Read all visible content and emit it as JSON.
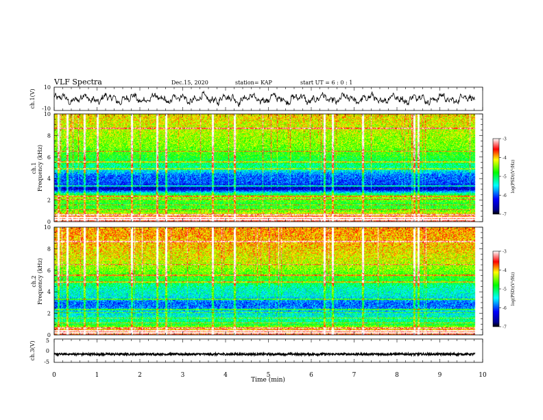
{
  "header": {
    "title": "VLF Spectra",
    "date": "Dec.15, 2020",
    "station": "station= KAP",
    "start": "start  UT =  6 : 0 : 1"
  },
  "chart_data": [
    {
      "id": "ch1_waveform",
      "type": "line",
      "ylabel": "ch.1(V)",
      "ylim": [
        -10,
        10
      ],
      "xlim": [
        0,
        10
      ],
      "yticklabels": [
        "10",
        "-10"
      ]
    },
    {
      "id": "ch1_spectrogram",
      "type": "heatmap",
      "ylabel_lines": [
        "ch.1",
        "Frequency (kHz)"
      ],
      "ylim": [
        0,
        10
      ],
      "yticks": [
        0,
        2,
        4,
        6,
        8,
        10
      ],
      "xlim": [
        0,
        10
      ],
      "colorbar": {
        "label": "log(PSD)(V²/Hz)",
        "range": [
          -7,
          -3
        ],
        "ticks": [
          "-3",
          "-4",
          "-5",
          "-6",
          "-7"
        ]
      },
      "band_levels_kHz": [
        {
          "f": 0.3,
          "level": -3.5
        },
        {
          "f": 1.0,
          "level": -4.6
        },
        {
          "f": 1.6,
          "level": -4.9
        },
        {
          "f": 2.2,
          "level": -4.4
        },
        {
          "f": 2.6,
          "level": -5.2
        },
        {
          "f": 3.0,
          "level": -6.5
        },
        {
          "f": 3.6,
          "level": -6.0
        },
        {
          "f": 4.3,
          "level": -5.9
        },
        {
          "f": 5.0,
          "level": -5.2
        },
        {
          "f": 6.0,
          "level": -4.8
        },
        {
          "f": 7.0,
          "level": -4.5
        },
        {
          "f": 8.5,
          "level": -4.3
        },
        {
          "f": 9.8,
          "level": -4.1
        }
      ]
    },
    {
      "id": "ch2_spectrogram",
      "type": "heatmap",
      "ylabel_lines": [
        "ch.2",
        "Frequency (kHz)"
      ],
      "ylim": [
        0,
        10
      ],
      "yticks": [
        0,
        2,
        4,
        6,
        8,
        10
      ],
      "xlim": [
        0,
        10
      ],
      "colorbar": {
        "label": "log(PSD)(V²/Hz)",
        "range": [
          -7,
          -3
        ],
        "ticks": [
          "-3",
          "-4",
          "-5",
          "-6",
          "-7"
        ]
      },
      "band_levels_kHz": [
        {
          "f": 0.3,
          "level": -3.6
        },
        {
          "f": 1.0,
          "level": -5.0
        },
        {
          "f": 1.6,
          "level": -5.3
        },
        {
          "f": 2.2,
          "level": -5.6
        },
        {
          "f": 2.6,
          "level": -5.9
        },
        {
          "f": 3.0,
          "level": -5.9
        },
        {
          "f": 3.6,
          "level": -5.4
        },
        {
          "f": 4.3,
          "level": -5.3
        },
        {
          "f": 5.0,
          "level": -4.9
        },
        {
          "f": 6.0,
          "level": -4.5
        },
        {
          "f": 7.0,
          "level": -4.2
        },
        {
          "f": 8.5,
          "level": -4.0
        },
        {
          "f": 9.8,
          "level": -3.9
        }
      ]
    },
    {
      "id": "ch3_waveform",
      "type": "line",
      "ylabel": "ch.3(V)",
      "ylim": [
        -5,
        5
      ],
      "xlim": [
        0,
        10
      ],
      "yticklabels": [
        "5",
        "0",
        "-5"
      ],
      "level": -1.5
    }
  ],
  "xaxis": {
    "label": "Time (min)",
    "ticks": [
      "0",
      "1",
      "2",
      "3",
      "4",
      "5",
      "6",
      "7",
      "8",
      "9",
      "10"
    ],
    "data_end_min": 9.82
  },
  "spectral_events_min": [
    0.1,
    0.3,
    0.7,
    1.0,
    1.8,
    2.4,
    2.6,
    3.7,
    4.2,
    6.3,
    6.5,
    7.2,
    8.4,
    8.5
  ]
}
